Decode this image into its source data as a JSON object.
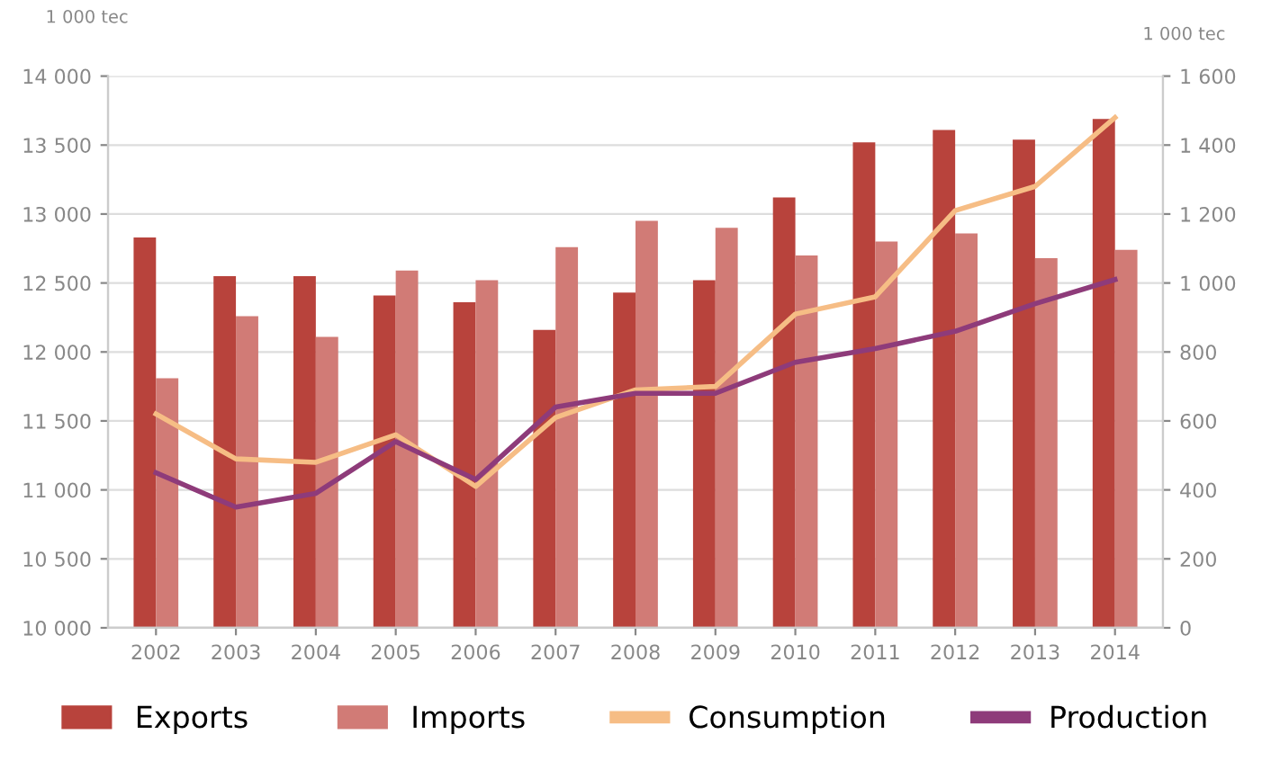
{
  "chart_data": {
    "type": "bar",
    "ylabel": "1 000 tec",
    "y2label": "1 000 tec",
    "categories": [
      "2002",
      "2003",
      "2004",
      "2005",
      "2006",
      "2007",
      "2008",
      "2009",
      "2010",
      "2011",
      "2012",
      "2013",
      "2014"
    ],
    "series": [
      {
        "name": "Exports",
        "color": "#b8433c",
        "values": [
          12830,
          12550,
          12550,
          12410,
          12360,
          12160,
          12430,
          12520,
          13120,
          13520,
          13610,
          13540,
          13690
        ]
      },
      {
        "name": "Imports",
        "color": "#d17b76",
        "values": [
          11810,
          12260,
          12110,
          12590,
          12520,
          12760,
          12950,
          12900,
          12700,
          12800,
          12860,
          12680,
          12740
        ]
      },
      {
        "name": "Consumption",
        "type": "line",
        "axis": "y2",
        "color": "#f6bd85",
        "values": [
          620,
          490,
          480,
          560,
          410,
          610,
          690,
          700,
          910,
          960,
          1210,
          1280,
          1480
        ]
      },
      {
        "name": "Production",
        "type": "line",
        "axis": "y2",
        "color": "#8e3b7a",
        "values": [
          450,
          350,
          390,
          540,
          430,
          640,
          680,
          680,
          770,
          810,
          860,
          940,
          1010
        ]
      }
    ],
    "ylim": [
      10000,
      14000
    ],
    "yticks": [
      {
        "value": 10000,
        "label": "10 000"
      },
      {
        "value": 10500,
        "label": "10 500"
      },
      {
        "value": 11000,
        "label": "11 000"
      },
      {
        "value": 11500,
        "label": "11 500"
      },
      {
        "value": 12000,
        "label": "12 000"
      },
      {
        "value": 12500,
        "label": "12 500"
      },
      {
        "value": 13000,
        "label": "13 000"
      },
      {
        "value": 13500,
        "label": "13 500"
      },
      {
        "value": 14000,
        "label": "14 000"
      }
    ],
    "y2lim": [
      0,
      1600
    ],
    "y2ticks": [
      0,
      200,
      400,
      600,
      800,
      {
        "value": 1000,
        "label": "1 000"
      },
      {
        "value": 1200,
        "label": "1 200"
      },
      {
        "value": 1400,
        "label": "1 400"
      },
      {
        "value": 1600,
        "label": "1 600"
      }
    ],
    "grid": "y",
    "legend": "bottom",
    "marker": "none",
    "line_style": "solid"
  }
}
